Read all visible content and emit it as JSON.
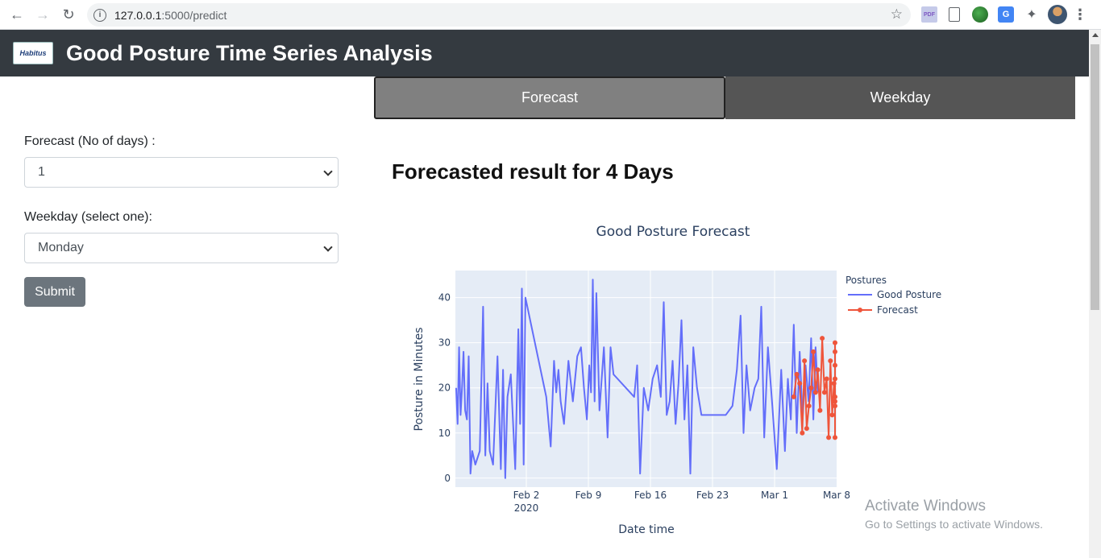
{
  "browser": {
    "url_host": "127.0.0.1",
    "url_path": ":5000/predict",
    "icons": [
      "back-icon",
      "forward-icon",
      "reload-icon",
      "info-icon",
      "star-icon",
      "pdf-extension-icon",
      "document-extension-icon",
      "globe-extension-icon",
      "translate-extension-icon",
      "puzzle-icon",
      "avatar",
      "menu-icon"
    ]
  },
  "header": {
    "logo_text": "Habitus",
    "title": "Good Posture Time Series Analysis"
  },
  "tabs": [
    {
      "label": "Forecast",
      "active": true
    },
    {
      "label": "Weekday",
      "active": false
    }
  ],
  "form": {
    "forecast_label": "Forecast (No of days) :",
    "forecast_value": "1",
    "weekday_label": "Weekday (select one):",
    "weekday_value": "Monday",
    "submit_label": "Submit"
  },
  "result": {
    "heading": "Forecasted result for 4 Days"
  },
  "chart_data": {
    "type": "line",
    "title": "Good Posture Forecast",
    "xlabel": "Date time",
    "ylabel": "Posture in Minutes",
    "ylim": [
      -2,
      46
    ],
    "xlim": [
      "2020-01-25",
      "2020-03-08"
    ],
    "x_ticks": [
      "Feb 2",
      "Feb 9",
      "Feb 16",
      "Feb 23",
      "Mar 1",
      "Mar 8"
    ],
    "x_tick_subtitle": "2020",
    "y_ticks": [
      0,
      10,
      20,
      30,
      40
    ],
    "grid": true,
    "plot_bgcolor": "#e5ecf6",
    "legend": {
      "title": "Postures",
      "placement": "right-top"
    },
    "series": [
      {
        "name": "Good Posture",
        "color": "#636efa",
        "mode": "lines",
        "points": [
          [
            "2020-01-25",
            20
          ],
          [
            "2020-01-25",
            12
          ],
          [
            "2020-01-25",
            29
          ],
          [
            "2020-01-25",
            14
          ],
          [
            "2020-01-25",
            20
          ],
          [
            "2020-01-25",
            28
          ],
          [
            "2020-01-26",
            15
          ],
          [
            "2020-01-26",
            13
          ],
          [
            "2020-01-26",
            27
          ],
          [
            "2020-01-26",
            1
          ],
          [
            "2020-01-26",
            6
          ],
          [
            "2020-01-27",
            3
          ],
          [
            "2020-01-27",
            6
          ],
          [
            "2020-01-28",
            38
          ],
          [
            "2020-01-28",
            5
          ],
          [
            "2020-01-28",
            21
          ],
          [
            "2020-01-28",
            6
          ],
          [
            "2020-01-29",
            3
          ],
          [
            "2020-01-29",
            27
          ],
          [
            "2020-01-30",
            2
          ],
          [
            "2020-01-30",
            24
          ],
          [
            "2020-01-30",
            0
          ],
          [
            "2020-01-30",
            18
          ],
          [
            "2020-01-31",
            23
          ],
          [
            "2020-01-31",
            2
          ],
          [
            "2020-02-01",
            33
          ],
          [
            "2020-02-01",
            12
          ],
          [
            "2020-02-01",
            42
          ],
          [
            "2020-02-01",
            3
          ],
          [
            "2020-02-01",
            40
          ],
          [
            "2020-02-04",
            18
          ],
          [
            "2020-02-04",
            7
          ],
          [
            "2020-02-05",
            26
          ],
          [
            "2020-02-05",
            19
          ],
          [
            "2020-02-05",
            24
          ],
          [
            "2020-02-05",
            17
          ],
          [
            "2020-02-06",
            12
          ],
          [
            "2020-02-06",
            26
          ],
          [
            "2020-02-07",
            17
          ],
          [
            "2020-02-07",
            27
          ],
          [
            "2020-02-08",
            29
          ],
          [
            "2020-02-08",
            20
          ],
          [
            "2020-02-08",
            13
          ],
          [
            "2020-02-09",
            25
          ],
          [
            "2020-02-09",
            19
          ],
          [
            "2020-02-09",
            44
          ],
          [
            "2020-02-09",
            17
          ],
          [
            "2020-02-09",
            41
          ],
          [
            "2020-02-10",
            15
          ],
          [
            "2020-02-10",
            29
          ],
          [
            "2020-02-11",
            9
          ],
          [
            "2020-02-11",
            29
          ],
          [
            "2020-02-11",
            23
          ],
          [
            "2020-02-14",
            18
          ],
          [
            "2020-02-14",
            25
          ],
          [
            "2020-02-14",
            1
          ],
          [
            "2020-02-15",
            20
          ],
          [
            "2020-02-15",
            15
          ],
          [
            "2020-02-16",
            22
          ],
          [
            "2020-02-16",
            25
          ],
          [
            "2020-02-17",
            18
          ],
          [
            "2020-02-17",
            39
          ],
          [
            "2020-02-17",
            14
          ],
          [
            "2020-02-18",
            17
          ],
          [
            "2020-02-18",
            26
          ],
          [
            "2020-02-18",
            12
          ],
          [
            "2020-02-19",
            21
          ],
          [
            "2020-02-19",
            35
          ],
          [
            "2020-02-19",
            13
          ],
          [
            "2020-02-20",
            25
          ],
          [
            "2020-02-20",
            1
          ],
          [
            "2020-02-20",
            29
          ],
          [
            "2020-02-21",
            20
          ],
          [
            "2020-02-21",
            14
          ],
          [
            "2020-02-24",
            14
          ],
          [
            "2020-02-25",
            16
          ],
          [
            "2020-02-25",
            24
          ],
          [
            "2020-02-26",
            36
          ],
          [
            "2020-02-26",
            10
          ],
          [
            "2020-02-26",
            25
          ],
          [
            "2020-02-27",
            15
          ],
          [
            "2020-02-27",
            20
          ],
          [
            "2020-02-28",
            22
          ],
          [
            "2020-02-28",
            38
          ],
          [
            "2020-02-28",
            9
          ],
          [
            "2020-02-29",
            29
          ],
          [
            "2020-02-29",
            16
          ],
          [
            "2020-03-01",
            2
          ],
          [
            "2020-03-01",
            24
          ],
          [
            "2020-03-02",
            6
          ],
          [
            "2020-03-02",
            22
          ],
          [
            "2020-03-02",
            13
          ],
          [
            "2020-03-03",
            34
          ],
          [
            "2020-03-03",
            10
          ],
          [
            "2020-03-03",
            28
          ],
          [
            "2020-03-04",
            13
          ],
          [
            "2020-03-04",
            25
          ],
          [
            "2020-03-04",
            17
          ],
          [
            "2020-03-05",
            31
          ],
          [
            "2020-03-05",
            13
          ],
          [
            "2020-03-05",
            29
          ],
          [
            "2020-03-05",
            19
          ]
        ]
      },
      {
        "name": "Forecast",
        "color": "#ef553b",
        "mode": "lines+markers",
        "points": [
          [
            "2020-03-03",
            18
          ],
          [
            "2020-03-03",
            23
          ],
          [
            "2020-03-03",
            21
          ],
          [
            "2020-03-04",
            10
          ],
          [
            "2020-03-04",
            26
          ],
          [
            "2020-03-04",
            11
          ],
          [
            "2020-03-04",
            16
          ],
          [
            "2020-03-05",
            20
          ],
          [
            "2020-03-05",
            28
          ],
          [
            "2020-03-05",
            19
          ],
          [
            "2020-03-05",
            24
          ],
          [
            "2020-03-06",
            15
          ],
          [
            "2020-03-06",
            31
          ],
          [
            "2020-03-06",
            19
          ],
          [
            "2020-03-06",
            22
          ],
          [
            "2020-03-07",
            9
          ],
          [
            "2020-03-07",
            26
          ],
          [
            "2020-03-07",
            14
          ],
          [
            "2020-03-07",
            21
          ],
          [
            "2020-03-07",
            18
          ],
          [
            "2020-03-08",
            25
          ],
          [
            "2020-03-08",
            9
          ],
          [
            "2020-03-08",
            28
          ],
          [
            "2020-03-08",
            17
          ],
          [
            "2020-03-08",
            30
          ],
          [
            "2020-03-08",
            22
          ],
          [
            "2020-03-08",
            16
          ]
        ]
      }
    ]
  },
  "watermark": {
    "line1": "Activate Windows",
    "line2": "Go to Settings to activate Windows."
  }
}
